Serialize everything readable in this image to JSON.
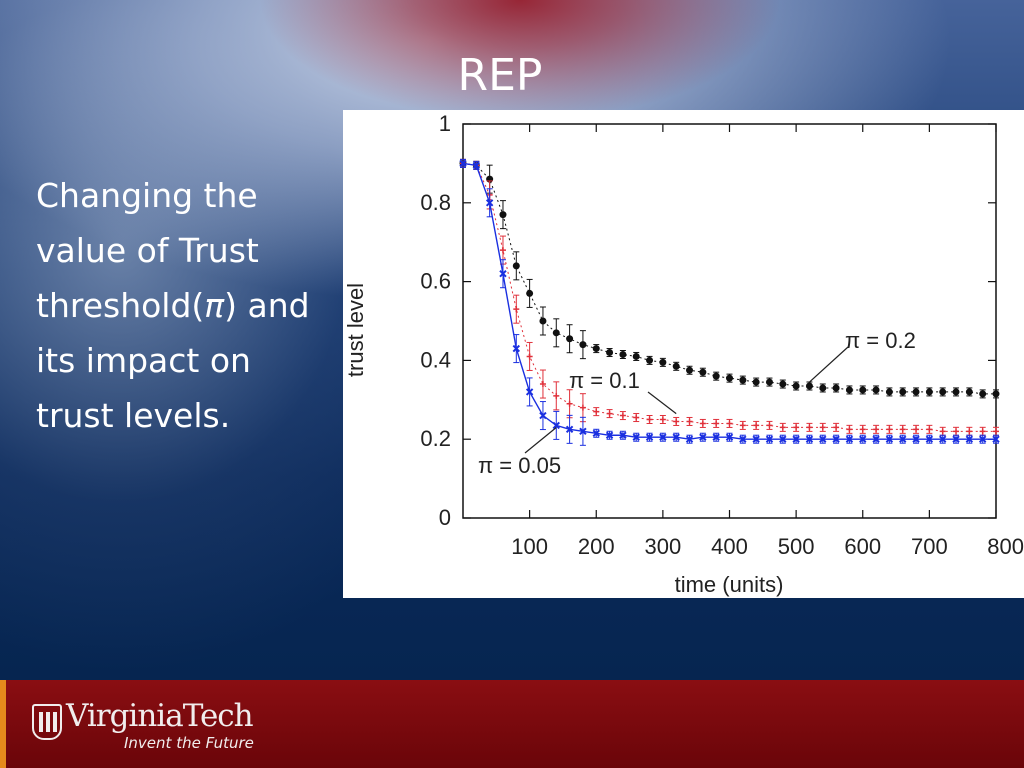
{
  "slide": {
    "title": "REP",
    "body_lines": [
      "Changing the",
      "value of Trust",
      "threshold(",
      "π",
      ") and",
      "its impact on",
      "trust levels."
    ]
  },
  "footer": {
    "logo_text": "VirginiaTech",
    "tagline": "Invent the Future",
    "colors": {
      "footer": "#7a0a0e",
      "accent": "#e58a1c"
    }
  },
  "chart_data": {
    "type": "line",
    "xlabel": "time (units)",
    "ylabel": "trust level",
    "xlim": [
      0,
      800
    ],
    "ylim": [
      0,
      1
    ],
    "xticks": [
      100,
      200,
      300,
      400,
      500,
      600,
      700,
      800
    ],
    "yticks": [
      0,
      0.2,
      0.4,
      0.6,
      0.8,
      1
    ],
    "ytick_labels": [
      "0",
      "0.2",
      "0.4",
      "0.6",
      "0.8",
      "1"
    ],
    "grid": false,
    "error_bars": true,
    "series": [
      {
        "name": "π = 0.2",
        "color": "#111111",
        "marker": "circle",
        "x": [
          0,
          20,
          40,
          60,
          80,
          100,
          120,
          140,
          160,
          180,
          200,
          220,
          240,
          260,
          280,
          300,
          320,
          340,
          360,
          380,
          400,
          420,
          440,
          460,
          480,
          500,
          520,
          540,
          560,
          580,
          600,
          620,
          640,
          660,
          680,
          700,
          720,
          740,
          760,
          780,
          800
        ],
        "y": [
          0.9,
          0.895,
          0.86,
          0.77,
          0.64,
          0.57,
          0.5,
          0.47,
          0.455,
          0.44,
          0.43,
          0.42,
          0.415,
          0.41,
          0.4,
          0.395,
          0.385,
          0.375,
          0.37,
          0.36,
          0.355,
          0.35,
          0.345,
          0.345,
          0.34,
          0.335,
          0.335,
          0.33,
          0.33,
          0.325,
          0.325,
          0.325,
          0.32,
          0.32,
          0.32,
          0.32,
          0.32,
          0.32,
          0.32,
          0.315,
          0.315
        ]
      },
      {
        "name": "π = 0.1",
        "color": "#e0303a",
        "marker": "plus",
        "x": [
          0,
          20,
          40,
          60,
          80,
          100,
          120,
          140,
          160,
          180,
          200,
          220,
          240,
          260,
          280,
          300,
          320,
          340,
          360,
          380,
          400,
          420,
          440,
          460,
          480,
          500,
          520,
          540,
          560,
          580,
          600,
          620,
          640,
          660,
          680,
          700,
          720,
          740,
          760,
          780,
          800
        ],
        "y": [
          0.9,
          0.895,
          0.82,
          0.68,
          0.53,
          0.41,
          0.34,
          0.31,
          0.29,
          0.28,
          0.27,
          0.265,
          0.26,
          0.255,
          0.25,
          0.25,
          0.245,
          0.245,
          0.24,
          0.24,
          0.24,
          0.235,
          0.235,
          0.235,
          0.23,
          0.23,
          0.23,
          0.23,
          0.23,
          0.225,
          0.225,
          0.225,
          0.225,
          0.225,
          0.225,
          0.225,
          0.22,
          0.22,
          0.22,
          0.22,
          0.22
        ]
      },
      {
        "name": "π = 0.05",
        "color": "#1a2fe0",
        "marker": "x",
        "x": [
          0,
          20,
          40,
          60,
          80,
          100,
          120,
          140,
          160,
          180,
          200,
          220,
          240,
          260,
          280,
          300,
          320,
          340,
          360,
          380,
          400,
          420,
          440,
          460,
          480,
          500,
          520,
          540,
          560,
          580,
          600,
          620,
          640,
          660,
          680,
          700,
          720,
          740,
          760,
          780,
          800
        ],
        "y": [
          0.9,
          0.895,
          0.8,
          0.62,
          0.43,
          0.32,
          0.26,
          0.235,
          0.225,
          0.22,
          0.215,
          0.21,
          0.21,
          0.205,
          0.205,
          0.205,
          0.205,
          0.2,
          0.205,
          0.205,
          0.205,
          0.2,
          0.2,
          0.2,
          0.2,
          0.2,
          0.2,
          0.2,
          0.2,
          0.2,
          0.2,
          0.2,
          0.2,
          0.2,
          0.2,
          0.2,
          0.2,
          0.2,
          0.2,
          0.2,
          0.2
        ]
      }
    ],
    "annotations": [
      {
        "text": "π = 0.2",
        "points_to": [
          520,
          0.345
        ]
      },
      {
        "text": "π = 0.1",
        "points_to": [
          320,
          0.265
        ]
      },
      {
        "text": "π = 0.05",
        "points_to": [
          140,
          0.25
        ]
      }
    ]
  }
}
